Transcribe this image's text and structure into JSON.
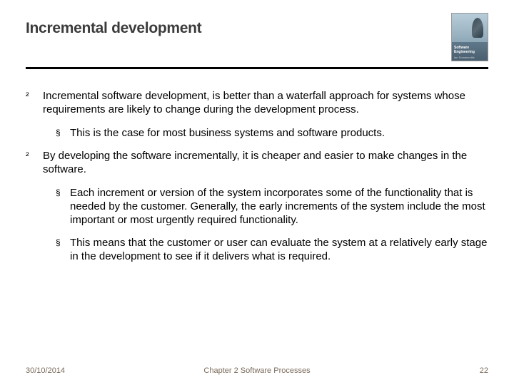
{
  "title": "Incremental development",
  "bookcover": {
    "line1": "Software Engineering",
    "line2": "Ian Sommerville"
  },
  "bullets": {
    "b1": "Incremental software development, is better than a waterfall approach for systems whose requirements are likely to change during the development process.",
    "b1_sub1": "This is the case for most business systems and software products.",
    "b2": "By developing the software incrementally, it is cheaper and easier to make changes in the software.",
    "b2_sub1": "Each increment or version of the system incorporates some of the functionality that is needed by the customer. Generally, the early increments of the system include the most important or most urgently required functionality.",
    "b2_sub2": "This means that the customer or user can evaluate the system at a relatively early stage in the development to see if it delivers what is required."
  },
  "footer": {
    "date": "30/10/2014",
    "chapter": "Chapter 2 Software Processes",
    "page": "22"
  },
  "glyphs": {
    "diamond": "²",
    "square": "§"
  }
}
